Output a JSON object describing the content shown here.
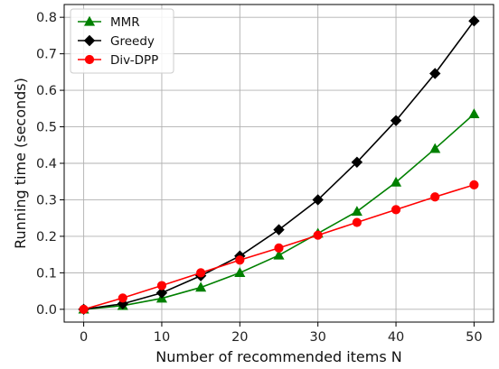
{
  "chart_data": {
    "type": "line",
    "xlabel": "Number of recommended items N",
    "ylabel": "Running time (seconds)",
    "xlim": [
      -2.5,
      52.5
    ],
    "ylim": [
      -0.035,
      0.835
    ],
    "xticks": [
      0,
      10,
      20,
      30,
      40,
      50
    ],
    "xtick_labels": [
      "0",
      "10",
      "20",
      "30",
      "40",
      "50"
    ],
    "yticks": [
      0.0,
      0.1,
      0.2,
      0.3,
      0.4,
      0.5,
      0.6,
      0.7,
      0.8
    ],
    "ytick_labels": [
      "0.0",
      "0.1",
      "0.2",
      "0.3",
      "0.4",
      "0.5",
      "0.6",
      "0.7",
      "0.8"
    ],
    "grid": true,
    "legend_position": "top-left",
    "x": [
      0,
      5,
      10,
      15,
      20,
      25,
      30,
      35,
      40,
      45,
      50
    ],
    "series": [
      {
        "name": "MMR",
        "color": "#008000",
        "marker": "triangle",
        "values": [
          0.0,
          0.01,
          0.03,
          0.06,
          0.1,
          0.148,
          0.208,
          0.268,
          0.348,
          0.44,
          0.535
        ]
      },
      {
        "name": "Greedy",
        "color": "#000000",
        "marker": "diamond",
        "values": [
          0.0,
          0.015,
          0.045,
          0.092,
          0.146,
          0.218,
          0.3,
          0.403,
          0.517,
          0.646,
          0.79
        ]
      },
      {
        "name": "Div-DPP",
        "color": "#ff0000",
        "marker": "circle",
        "values": [
          0.0,
          0.031,
          0.065,
          0.1,
          0.135,
          0.168,
          0.203,
          0.238,
          0.273,
          0.308,
          0.341
        ]
      }
    ]
  }
}
